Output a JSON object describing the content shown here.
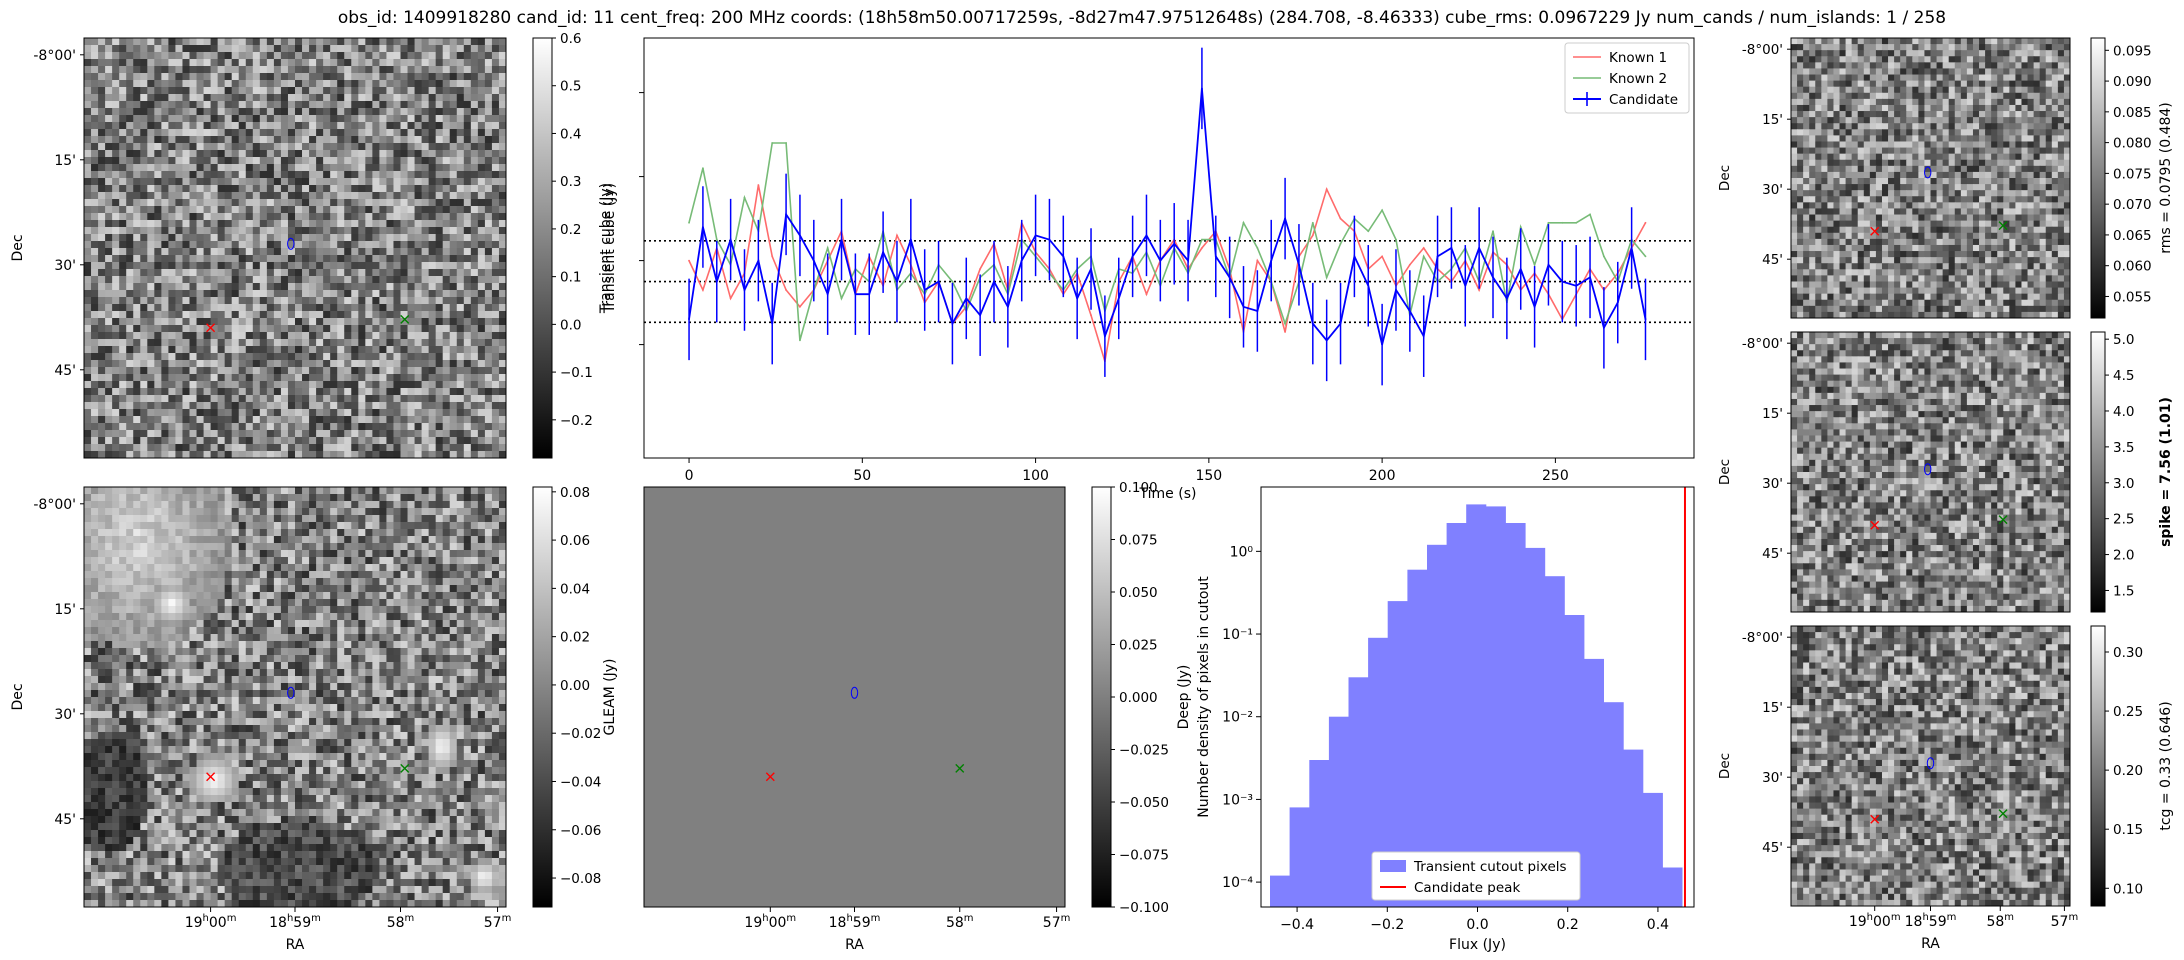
{
  "figure": {
    "title": "obs_id: 1409918280 cand_id: 11 cent_freq: 200 MHz coords: (18h58m50.00717259s, -8d27m47.97512648s) (284.708, -8.46333) cube_rms: 0.0967229 Jy num_cands / num_islands: 1 / 258"
  },
  "chart_data": [
    {
      "id": "transient_cutout",
      "type": "heatmap",
      "colorbar_label": "Transient cube (Jy)",
      "colorbar_ticks": [
        "0.6",
        "0.5",
        "0.4",
        "0.3",
        "0.2",
        "0.1",
        "0.0",
        "−0.1",
        "−0.2"
      ],
      "colorbar_values": [
        0.6,
        0.5,
        0.4,
        0.3,
        0.2,
        0.1,
        0.0,
        -0.1,
        -0.2
      ],
      "clim": [
        -0.28,
        0.6
      ],
      "ylabel": "Dec",
      "dec_ticks": [
        "-8°00'",
        "15'",
        "30'",
        "45'"
      ],
      "markers": [
        {
          "kind": "ellipse",
          "color": "#0000ff",
          "label": "candidate"
        },
        {
          "kind": "x",
          "color": "#ff0000",
          "label": "Known 1"
        },
        {
          "kind": "x",
          "color": "#008000",
          "label": "Known 2"
        }
      ]
    },
    {
      "id": "lightcurve",
      "type": "line",
      "xlabel": "Time (s)",
      "ylabel": "Transient cube (Jy)",
      "xlim": [
        -13,
        290
      ],
      "ylim": [
        -0.42,
        0.58
      ],
      "xticks": [
        0,
        50,
        100,
        150,
        200,
        250
      ],
      "xtick_labels": [
        "0",
        "50",
        "100",
        "150",
        "200",
        "250"
      ],
      "hlines": [
        0.097,
        0.0,
        -0.097
      ],
      "legend_position": "top-right",
      "series": [
        {
          "name": "Known 1",
          "color": "#ff6b6b",
          "x": [
            0,
            4,
            8,
            12,
            16,
            20,
            24,
            28,
            32,
            36,
            40,
            44,
            48,
            52,
            56,
            60,
            64,
            68,
            72,
            76,
            80,
            84,
            88,
            92,
            96,
            100,
            104,
            108,
            112,
            116,
            120,
            124,
            128,
            132,
            136,
            140,
            144,
            148,
            152,
            156,
            160,
            164,
            168,
            172,
            176,
            180,
            184,
            188,
            192,
            196,
            200,
            204,
            208,
            212,
            216,
            220,
            224,
            228,
            232,
            236,
            240,
            244,
            248,
            252,
            256,
            260,
            264,
            268,
            272,
            276
          ],
          "y": [
            0.05,
            -0.02,
            0.08,
            -0.04,
            0.02,
            0.23,
            0.06,
            -0.02,
            -0.06,
            -0.02,
            0.05,
            0.12,
            -0.03,
            0.06,
            -0.01,
            0.11,
            0.04,
            -0.05,
            0.0,
            -0.1,
            -0.06,
            0.03,
            0.09,
            -0.02,
            0.14,
            0.07,
            0.03,
            -0.03,
            0.02,
            -0.08,
            -0.19,
            0.0,
            0.06,
            -0.03,
            0.05,
            0.1,
            0.03,
            0.08,
            0.12,
            0.03,
            -0.12,
            0.05,
            0.0,
            -0.12,
            0.06,
            0.11,
            0.22,
            0.15,
            0.12,
            0.03,
            0.06,
            -0.01,
            0.04,
            0.08,
            0.03,
            0.0,
            0.05,
            -0.02,
            0.07,
            0.04,
            -0.02,
            0.02,
            -0.03,
            -0.09,
            -0.03,
            0.03,
            -0.02,
            0.02,
            0.08,
            0.14
          ]
        },
        {
          "name": "Known 2",
          "color": "#77bb77",
          "x": [
            0,
            4,
            8,
            12,
            16,
            20,
            24,
            28,
            32,
            36,
            40,
            44,
            48,
            52,
            56,
            60,
            64,
            68,
            72,
            76,
            80,
            84,
            88,
            92,
            96,
            100,
            104,
            108,
            112,
            116,
            120,
            124,
            128,
            132,
            136,
            140,
            144,
            148,
            152,
            156,
            160,
            164,
            168,
            172,
            176,
            180,
            184,
            188,
            192,
            196,
            200,
            204,
            208,
            212,
            216,
            220,
            224,
            228,
            232,
            236,
            240,
            244,
            248,
            252,
            256,
            260,
            264,
            268,
            272,
            276
          ],
          "y": [
            0.14,
            0.27,
            0.1,
            0.04,
            0.2,
            0.12,
            0.33,
            0.33,
            -0.14,
            -0.02,
            0.08,
            -0.04,
            0.03,
            0.0,
            0.12,
            -0.02,
            0.02,
            -0.03,
            0.04,
            0.0,
            -0.07,
            0.01,
            0.04,
            -0.03,
            0.1,
            0.06,
            0.02,
            -0.02,
            0.03,
            0.06,
            -0.07,
            0.03,
            0.02,
            0.07,
            -0.01,
            0.08,
            0.02,
            0.1,
            0.1,
            0.01,
            0.14,
            0.08,
            0.0,
            -0.1,
            0.0,
            0.14,
            0.01,
            0.09,
            0.15,
            0.12,
            0.17,
            0.1,
            -0.08,
            0.06,
            0.0,
            0.03,
            0.08,
            0.0,
            0.12,
            -0.05,
            0.13,
            0.04,
            0.14,
            0.14,
            0.14,
            0.16,
            0.06,
            0.0,
            0.1,
            0.06
          ]
        },
        {
          "name": "Candidate",
          "color": "#0000ff",
          "x": [
            0,
            4,
            8,
            12,
            16,
            20,
            24,
            28,
            32,
            36,
            40,
            44,
            48,
            52,
            56,
            60,
            64,
            68,
            72,
            76,
            80,
            84,
            88,
            92,
            96,
            100,
            104,
            108,
            112,
            116,
            120,
            124,
            128,
            132,
            136,
            140,
            144,
            148,
            152,
            156,
            160,
            164,
            168,
            172,
            176,
            180,
            184,
            188,
            192,
            196,
            200,
            204,
            208,
            212,
            216,
            220,
            224,
            228,
            232,
            236,
            240,
            244,
            248,
            252,
            256,
            260,
            264,
            268,
            272,
            276
          ],
          "y": [
            -0.09,
            0.13,
            0.0,
            0.1,
            -0.02,
            0.05,
            -0.1,
            0.16,
            0.11,
            0.05,
            -0.03,
            0.1,
            -0.03,
            -0.03,
            0.07,
            0.0,
            0.1,
            -0.02,
            0.0,
            -0.1,
            -0.04,
            -0.08,
            0.0,
            -0.06,
            0.05,
            0.11,
            0.1,
            0.06,
            -0.04,
            0.03,
            -0.13,
            -0.04,
            0.06,
            0.11,
            0.05,
            0.09,
            0.05,
            0.46,
            0.06,
            0.01,
            -0.06,
            -0.07,
            0.05,
            0.15,
            0.04,
            -0.1,
            -0.14,
            -0.1,
            0.06,
            -0.01,
            -0.15,
            -0.02,
            -0.07,
            -0.13,
            0.06,
            0.08,
            -0.01,
            0.08,
            0.01,
            -0.04,
            0.03,
            -0.06,
            0.04,
            0.0,
            -0.01,
            0.01,
            -0.11,
            -0.05,
            0.08,
            -0.09
          ],
          "err": 0.097
        }
      ]
    },
    {
      "id": "rms_cutout",
      "type": "heatmap",
      "colorbar_label": "rms = 0.0795 (0.484)",
      "colorbar_ticks": [
        "0.095",
        "0.090",
        "0.085",
        "0.080",
        "0.075",
        "0.070",
        "0.065",
        "0.060",
        "0.055"
      ],
      "colorbar_values": [
        0.095,
        0.09,
        0.085,
        0.08,
        0.075,
        0.07,
        0.065,
        0.06,
        0.055
      ],
      "clim": [
        0.0515,
        0.097
      ],
      "ylabel": "Dec",
      "dec_ticks": [
        "-8°00'",
        "15'",
        "30'",
        "45'"
      ]
    },
    {
      "id": "spike_cutout",
      "type": "heatmap",
      "colorbar_label": "spike = 7.56 (1.01)",
      "colorbar_ticks": [
        "5.0",
        "4.5",
        "4.0",
        "3.5",
        "3.0",
        "2.5",
        "2.0",
        "1.5"
      ],
      "colorbar_values": [
        5.0,
        4.5,
        4.0,
        3.5,
        3.0,
        2.5,
        2.0,
        1.5
      ],
      "clim": [
        1.2,
        5.1
      ],
      "ylabel": "Dec",
      "dec_ticks": [
        "-8°00'",
        "15'",
        "30'",
        "45'"
      ]
    },
    {
      "id": "gleam_cutout",
      "type": "heatmap",
      "colorbar_label": "GLEAM (Jy)",
      "colorbar_ticks": [
        "0.08",
        "0.06",
        "0.04",
        "0.02",
        "0.00",
        "−0.02",
        "−0.04",
        "−0.06",
        "−0.08"
      ],
      "colorbar_values": [
        0.08,
        0.06,
        0.04,
        0.02,
        0.0,
        -0.02,
        -0.04,
        -0.06,
        -0.08
      ],
      "clim": [
        -0.092,
        0.082
      ],
      "xlabel": "RA",
      "ylabel": "Dec",
      "dec_ticks": [
        "-8°00'",
        "15'",
        "30'",
        "45'"
      ],
      "ra_ticks": [
        {
          "h": "19",
          "m": "00",
          "pos": 0.3
        },
        {
          "h": "18",
          "m": "59",
          "pos": 0.5
        },
        {
          "h": "",
          "m": "58",
          "pos": 0.75
        },
        {
          "h": "",
          "m": "57",
          "pos": 0.98
        }
      ]
    },
    {
      "id": "deep_cutout",
      "type": "heatmap",
      "colorbar_label": "Deep (Jy)",
      "colorbar_ticks": [
        "0.100",
        "0.075",
        "0.050",
        "0.025",
        "0.000",
        "−0.025",
        "−0.050",
        "−0.075",
        "−0.100"
      ],
      "colorbar_values": [
        0.1,
        0.075,
        0.05,
        0.025,
        0.0,
        -0.025,
        -0.05,
        -0.075,
        -0.1
      ],
      "clim": [
        -0.1,
        0.1
      ],
      "xlabel": "RA",
      "ra_ticks": [
        {
          "h": "19",
          "m": "00",
          "pos": 0.3
        },
        {
          "h": "18",
          "m": "59",
          "pos": 0.5
        },
        {
          "h": "",
          "m": "58",
          "pos": 0.75
        },
        {
          "h": "",
          "m": "57",
          "pos": 0.98
        }
      ]
    },
    {
      "id": "pixel_histogram",
      "type": "bar",
      "xlabel": "Flux (Jy)",
      "ylabel": "Number density of pixels in cutout",
      "yscale": "log",
      "xlim": [
        -0.48,
        0.48
      ],
      "ylim": [
        5e-05,
        6
      ],
      "xticks": [
        -0.4,
        -0.2,
        0.0,
        0.2,
        0.4
      ],
      "xtick_labels": [
        "−0.4",
        "−0.2",
        "0.0",
        "0.2",
        "0.4"
      ],
      "ytick_labels": [
        "10⁰",
        "10⁻¹",
        "10⁻²",
        "10⁻³",
        "10⁻⁴"
      ],
      "bin_edges": [
        -0.46,
        -0.4165,
        -0.373,
        -0.3295,
        -0.286,
        -0.2425,
        -0.199,
        -0.1555,
        -0.112,
        -0.0685,
        -0.025,
        0.0185,
        0.062,
        0.1055,
        0.149,
        0.1925,
        0.236,
        0.2795,
        0.323,
        0.3665,
        0.41,
        0.4535
      ],
      "values": [
        0.00012,
        0.0008,
        0.003,
        0.01,
        0.03,
        0.09,
        0.25,
        0.6,
        1.2,
        2.2,
        3.7,
        3.5,
        2.2,
        1.1,
        0.5,
        0.17,
        0.05,
        0.015,
        0.004,
        0.0012,
        0.00015
      ],
      "candidate_peak": 0.46,
      "legend_position": "bottom-center",
      "legend": [
        {
          "label": "Transient cutout pixels",
          "color": "#8080ff"
        },
        {
          "label": "Candidate peak",
          "color": "#ff0000"
        }
      ]
    },
    {
      "id": "tcg_cutout",
      "type": "heatmap",
      "colorbar_label": "tcg = 0.33 (0.646)",
      "colorbar_ticks": [
        "0.30",
        "0.25",
        "0.20",
        "0.15",
        "0.10"
      ],
      "colorbar_values": [
        0.3,
        0.25,
        0.2,
        0.15,
        0.1
      ],
      "clim": [
        0.085,
        0.322
      ],
      "xlabel": "RA",
      "ylabel": "Dec",
      "dec_ticks": [
        "-8°00'",
        "15'",
        "30'",
        "45'"
      ],
      "ra_ticks": [
        {
          "h": "19",
          "m": "00",
          "pos": 0.3
        },
        {
          "h": "18",
          "m": "59",
          "pos": 0.5
        },
        {
          "h": "",
          "m": "58",
          "pos": 0.75
        },
        {
          "h": "",
          "m": "57",
          "pos": 0.98
        }
      ]
    }
  ]
}
